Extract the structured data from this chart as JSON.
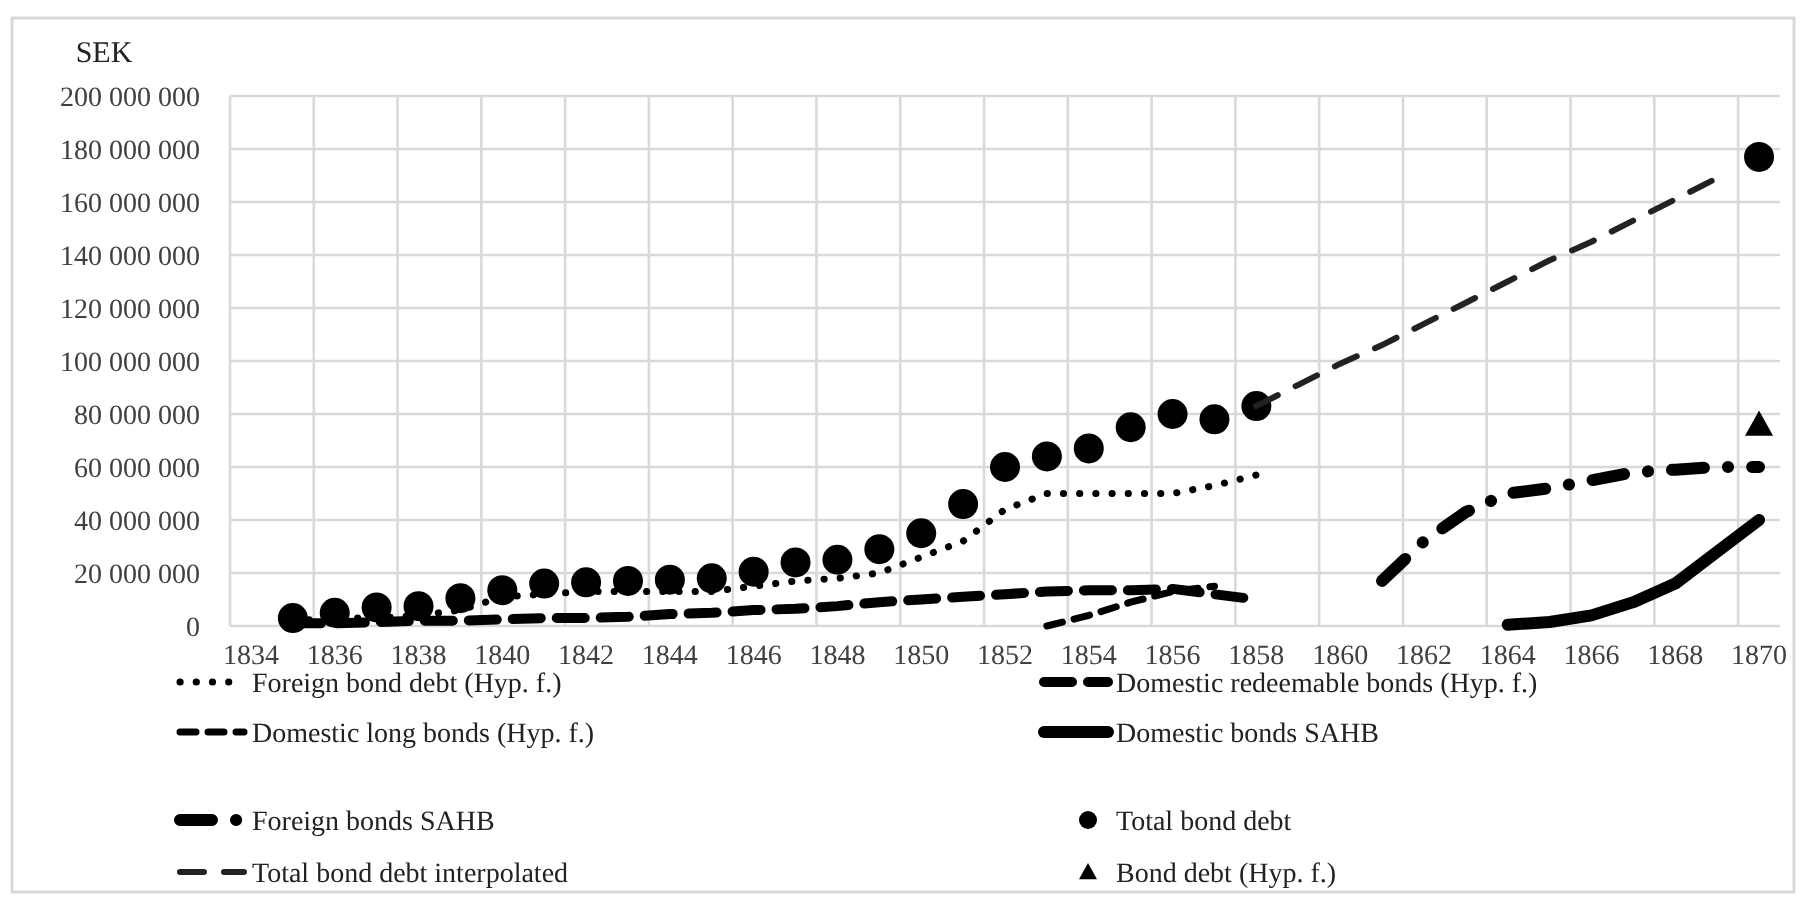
{
  "chart_data": {
    "type": "line",
    "ylabel": "SEK",
    "categories": [
      "1834",
      null,
      "1836",
      null,
      "1838",
      null,
      "1840",
      null,
      "1842",
      null,
      "1844",
      null,
      "1846",
      null,
      "1848",
      null,
      "1850",
      null,
      "1852",
      null,
      "1854",
      null,
      "1856",
      null,
      "1858",
      null,
      "1860",
      null,
      "1862",
      null,
      "1864",
      null,
      "1866",
      null,
      "1868",
      null,
      "1870"
    ],
    "ylim": [
      0,
      200000000
    ],
    "yticks": [
      {
        "value": 0,
        "label": "0"
      },
      {
        "value": 20000000,
        "label": "20 000 000"
      },
      {
        "value": 40000000,
        "label": "40 000 000"
      },
      {
        "value": 60000000,
        "label": "60 000 000"
      },
      {
        "value": 80000000,
        "label": "80 000 000"
      },
      {
        "value": 100000000,
        "label": "100 000 000"
      },
      {
        "value": 120000000,
        "label": "120 000 000"
      },
      {
        "value": 140000000,
        "label": "140 000 000"
      },
      {
        "value": 160000000,
        "label": "160 000 000"
      },
      {
        "value": 180000000,
        "label": "180 000 000"
      },
      {
        "value": 200000000,
        "label": "200 000 000"
      }
    ],
    "grid": true,
    "legend": "bottom",
    "series": [
      {
        "name": "Foreign bond debt (Hyp. f.)",
        "color": "#000000",
        "line_style": "dotted",
        "marker": "none",
        "values": [
          null,
          2000000,
          3000000,
          3000000,
          4000000,
          6000000,
          11000000,
          12000000,
          13000000,
          13000000,
          13000000,
          13000000,
          15000000,
          17000000,
          18000000,
          20000000,
          26000000,
          32000000,
          44000000,
          50000000,
          50000000,
          50000000,
          50000000,
          53000000,
          57000000,
          null,
          null,
          null,
          null,
          null,
          null,
          null,
          null,
          null,
          null,
          null,
          null
        ]
      },
      {
        "name": "Domestic redeemable bonds (Hyp. f.)",
        "color": "#000000",
        "line_style": "dashed",
        "marker": "none",
        "values": [
          null,
          1000000,
          1000000,
          1500000,
          2000000,
          2000000,
          2500000,
          3000000,
          3000000,
          3500000,
          4500000,
          5000000,
          6000000,
          6500000,
          7500000,
          9000000,
          10000000,
          11000000,
          12000000,
          13000000,
          13500000,
          13500000,
          14000000,
          12000000,
          10000000,
          null,
          null,
          null,
          null,
          null,
          null,
          null,
          null,
          null,
          null,
          null,
          null
        ]
      },
      {
        "name": "Domestic long bonds (Hyp. f.)",
        "color": "#000000",
        "line_style": "dashed",
        "marker": "none",
        "values": [
          null,
          null,
          null,
          null,
          null,
          null,
          null,
          null,
          null,
          null,
          null,
          null,
          null,
          null,
          null,
          null,
          null,
          null,
          null,
          0,
          4000000,
          9000000,
          13000000,
          15000000,
          null,
          null,
          null,
          null,
          null,
          null,
          null,
          null,
          null,
          null,
          null,
          null,
          null
        ]
      },
      {
        "name": "Domestic bonds SAHB",
        "color": "#000000",
        "line_style": "solid",
        "marker": "none",
        "values": [
          null,
          null,
          null,
          null,
          null,
          null,
          null,
          null,
          null,
          null,
          null,
          null,
          null,
          null,
          null,
          null,
          null,
          null,
          null,
          null,
          null,
          null,
          null,
          null,
          null,
          null,
          null,
          null,
          null,
          null,
          500000,
          1500000,
          4000000,
          9000000,
          16000000,
          28000000,
          40000000
        ]
      },
      {
        "name": "Foreign bonds SAHB",
        "color": "#000000",
        "line_style": "dashed",
        "marker": "none",
        "values": [
          null,
          null,
          null,
          null,
          null,
          null,
          null,
          null,
          null,
          null,
          null,
          null,
          null,
          null,
          null,
          null,
          null,
          null,
          null,
          null,
          null,
          null,
          null,
          null,
          null,
          null,
          null,
          17000000,
          32000000,
          43000000,
          50000000,
          52000000,
          55000000,
          58000000,
          59000000,
          60000000,
          60000000
        ]
      },
      {
        "name": "Total bond debt",
        "type": "scatter",
        "color": "#000000",
        "marker": "circle",
        "values": [
          null,
          3000000,
          5000000,
          7000000,
          7500000,
          10500000,
          13500000,
          16000000,
          16500000,
          17000000,
          17500000,
          18000000,
          20500000,
          24000000,
          25000000,
          29000000,
          35000000,
          46000000,
          60000000,
          64000000,
          67000000,
          75000000,
          80000000,
          78000000,
          83000000,
          null,
          null,
          null,
          null,
          null,
          null,
          null,
          null,
          null,
          null,
          null,
          177000000
        ]
      },
      {
        "name": "Total bond debt interpolated",
        "color": "#222222",
        "line_style": "dashed",
        "marker": "none",
        "values": [
          null,
          null,
          null,
          null,
          null,
          null,
          null,
          null,
          null,
          null,
          null,
          null,
          null,
          null,
          null,
          null,
          null,
          null,
          null,
          null,
          null,
          null,
          null,
          null,
          83000000,
          91000000,
          99000000,
          106000000,
          114000000,
          122000000,
          130000000,
          138000000,
          145000000,
          153000000,
          161000000,
          169000000,
          null
        ]
      },
      {
        "name": "Bond debt  (Hyp. f.)",
        "type": "scatter",
        "color": "#000000",
        "marker": "triangle",
        "values": [
          null,
          null,
          null,
          null,
          null,
          null,
          null,
          null,
          null,
          null,
          null,
          null,
          null,
          null,
          null,
          null,
          null,
          null,
          null,
          null,
          null,
          null,
          null,
          null,
          null,
          null,
          null,
          null,
          null,
          null,
          null,
          null,
          null,
          null,
          null,
          null,
          76000000
        ]
      }
    ]
  }
}
